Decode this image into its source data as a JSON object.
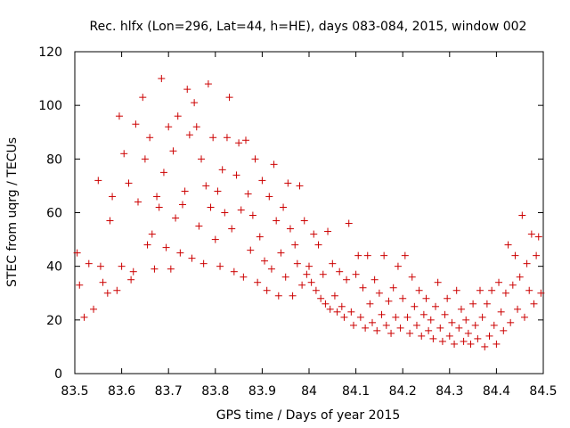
{
  "chart_data": {
    "type": "scatter",
    "title": "Rec. hlfx (Lon=296, Lat=44, h=HE), days 083-084, 2015, window 002",
    "xlabel": "GPS time / Days of year 2015",
    "ylabel": "STEC from uqrg / TECUs",
    "xlim": [
      83.5,
      84.5
    ],
    "ylim": [
      0,
      120
    ],
    "x_ticks": [
      "83.5",
      "83.6",
      "83.7",
      "83.8",
      "83.9",
      "84",
      "84.1",
      "84.2",
      "84.3",
      "84.4",
      "84.5"
    ],
    "y_ticks": [
      "0",
      "20",
      "40",
      "60",
      "80",
      "100",
      "120"
    ],
    "grid": false,
    "marker": "plus",
    "color": "#cc0000",
    "series": [
      {
        "points": [
          [
            83.505,
            45.0
          ],
          [
            83.51,
            33.0
          ],
          [
            83.52,
            21.0
          ],
          [
            83.53,
            41.0
          ],
          [
            83.54,
            24.0
          ],
          [
            83.55,
            72.0
          ],
          [
            83.555,
            40.0
          ],
          [
            83.56,
            34.0
          ],
          [
            83.57,
            30.0
          ],
          [
            83.575,
            57.0
          ],
          [
            83.58,
            66.0
          ],
          [
            83.59,
            31.0
          ],
          [
            83.595,
            96.0
          ],
          [
            83.6,
            40.0
          ],
          [
            83.605,
            82.0
          ],
          [
            83.615,
            71.0
          ],
          [
            83.62,
            35.0
          ],
          [
            83.625,
            38.0
          ],
          [
            83.63,
            93.0
          ],
          [
            83.635,
            64.0
          ],
          [
            83.645,
            103.0
          ],
          [
            83.65,
            80.0
          ],
          [
            83.655,
            48.0
          ],
          [
            83.66,
            88.0
          ],
          [
            83.665,
            52.0
          ],
          [
            83.67,
            39.0
          ],
          [
            83.675,
            66.0
          ],
          [
            83.68,
            62.0
          ],
          [
            83.685,
            110.0
          ],
          [
            83.69,
            75.0
          ],
          [
            83.695,
            47.0
          ],
          [
            83.7,
            92.0
          ],
          [
            83.705,
            39.0
          ],
          [
            83.71,
            83.0
          ],
          [
            83.715,
            58.0
          ],
          [
            83.72,
            96.0
          ],
          [
            83.725,
            45.0
          ],
          [
            83.73,
            63.0
          ],
          [
            83.735,
            68.0
          ],
          [
            83.74,
            106.0
          ],
          [
            83.745,
            89.0
          ],
          [
            83.75,
            43.0
          ],
          [
            83.755,
            101.0
          ],
          [
            83.76,
            92.0
          ],
          [
            83.765,
            55.0
          ],
          [
            83.77,
            80.0
          ],
          [
            83.775,
            41.0
          ],
          [
            83.78,
            70.0
          ],
          [
            83.785,
            108.0
          ],
          [
            83.79,
            62.0
          ],
          [
            83.795,
            88.0
          ],
          [
            83.8,
            50.0
          ],
          [
            83.805,
            68.0
          ],
          [
            83.81,
            40.0
          ],
          [
            83.815,
            76.0
          ],
          [
            83.82,
            60.0
          ],
          [
            83.825,
            88.0
          ],
          [
            83.83,
            103.0
          ],
          [
            83.835,
            54.0
          ],
          [
            83.84,
            38.0
          ],
          [
            83.845,
            74.0
          ],
          [
            83.85,
            86.0
          ],
          [
            83.855,
            61.0
          ],
          [
            83.86,
            36.0
          ],
          [
            83.865,
            87.0
          ],
          [
            83.87,
            67.0
          ],
          [
            83.875,
            46.0
          ],
          [
            83.88,
            59.0
          ],
          [
            83.885,
            80.0
          ],
          [
            83.89,
            34.0
          ],
          [
            83.895,
            51.0
          ],
          [
            83.9,
            72.0
          ],
          [
            83.905,
            42.0
          ],
          [
            83.91,
            31.0
          ],
          [
            83.915,
            66.0
          ],
          [
            83.92,
            39.0
          ],
          [
            83.925,
            78.0
          ],
          [
            83.93,
            57.0
          ],
          [
            83.935,
            29.0
          ],
          [
            83.94,
            45.0
          ],
          [
            83.945,
            62.0
          ],
          [
            83.95,
            36.0
          ],
          [
            83.955,
            71.0
          ],
          [
            83.96,
            54.0
          ],
          [
            83.965,
            29.0
          ],
          [
            83.97,
            48.0
          ],
          [
            83.975,
            41.0
          ],
          [
            83.98,
            70.0
          ],
          [
            83.985,
            33.0
          ],
          [
            83.99,
            57.0
          ],
          [
            83.995,
            37.0
          ],
          [
            84.0,
            40.0
          ],
          [
            84.005,
            34.0
          ],
          [
            84.01,
            52.0
          ],
          [
            84.015,
            31.0
          ],
          [
            84.02,
            48.0
          ],
          [
            84.025,
            28.0
          ],
          [
            84.03,
            37.0
          ],
          [
            84.035,
            26.0
          ],
          [
            84.04,
            53.0
          ],
          [
            84.045,
            24.0
          ],
          [
            84.05,
            41.0
          ],
          [
            84.055,
            29.0
          ],
          [
            84.06,
            23.0
          ],
          [
            84.065,
            38.0
          ],
          [
            84.07,
            25.0
          ],
          [
            84.075,
            21.0
          ],
          [
            84.08,
            35.0
          ],
          [
            84.085,
            56.0
          ],
          [
            84.09,
            23.0
          ],
          [
            84.095,
            18.0
          ],
          [
            84.1,
            37.0
          ],
          [
            84.105,
            44.0
          ],
          [
            84.11,
            21.0
          ],
          [
            84.115,
            32.0
          ],
          [
            84.12,
            17.0
          ],
          [
            84.125,
            44.0
          ],
          [
            84.13,
            26.0
          ],
          [
            84.135,
            19.0
          ],
          [
            84.14,
            35.0
          ],
          [
            84.145,
            16.0
          ],
          [
            84.15,
            30.0
          ],
          [
            84.155,
            22.0
          ],
          [
            84.16,
            44.0
          ],
          [
            84.165,
            18.0
          ],
          [
            84.17,
            27.0
          ],
          [
            84.175,
            15.0
          ],
          [
            84.18,
            32.0
          ],
          [
            84.185,
            21.0
          ],
          [
            84.19,
            40.0
          ],
          [
            84.195,
            17.0
          ],
          [
            84.2,
            28.0
          ],
          [
            84.205,
            44.0
          ],
          [
            84.21,
            21.0
          ],
          [
            84.215,
            15.0
          ],
          [
            84.22,
            36.0
          ],
          [
            84.225,
            25.0
          ],
          [
            84.23,
            18.0
          ],
          [
            84.235,
            31.0
          ],
          [
            84.24,
            14.0
          ],
          [
            84.245,
            22.0
          ],
          [
            84.25,
            28.0
          ],
          [
            84.255,
            16.0
          ],
          [
            84.26,
            20.0
          ],
          [
            84.265,
            13.0
          ],
          [
            84.27,
            25.0
          ],
          [
            84.275,
            34.0
          ],
          [
            84.28,
            17.0
          ],
          [
            84.285,
            12.0
          ],
          [
            84.29,
            22.0
          ],
          [
            84.295,
            28.0
          ],
          [
            84.3,
            14.0
          ],
          [
            84.305,
            19.0
          ],
          [
            84.31,
            11.0
          ],
          [
            84.315,
            31.0
          ],
          [
            84.32,
            17.0
          ],
          [
            84.325,
            24.0
          ],
          [
            84.33,
            12.0
          ],
          [
            84.335,
            20.0
          ],
          [
            84.34,
            15.0
          ],
          [
            84.345,
            11.0
          ],
          [
            84.35,
            26.0
          ],
          [
            84.355,
            18.0
          ],
          [
            84.36,
            13.0
          ],
          [
            84.365,
            31.0
          ],
          [
            84.37,
            21.0
          ],
          [
            84.375,
            10.0
          ],
          [
            84.38,
            26.0
          ],
          [
            84.385,
            14.0
          ],
          [
            84.39,
            31.0
          ],
          [
            84.395,
            18.0
          ],
          [
            84.4,
            11.0
          ],
          [
            84.405,
            34.0
          ],
          [
            84.41,
            23.0
          ],
          [
            84.415,
            16.0
          ],
          [
            84.42,
            30.0
          ],
          [
            84.425,
            48.0
          ],
          [
            84.43,
            19.0
          ],
          [
            84.435,
            33.0
          ],
          [
            84.44,
            44.0
          ],
          [
            84.445,
            24.0
          ],
          [
            84.45,
            36.0
          ],
          [
            84.455,
            59.0
          ],
          [
            84.46,
            21.0
          ],
          [
            84.465,
            41.0
          ],
          [
            84.47,
            31.0
          ],
          [
            84.475,
            52.0
          ],
          [
            84.48,
            26.0
          ],
          [
            84.485,
            44.0
          ],
          [
            84.49,
            51.0
          ],
          [
            84.495,
            30.0
          ]
        ]
      }
    ]
  }
}
